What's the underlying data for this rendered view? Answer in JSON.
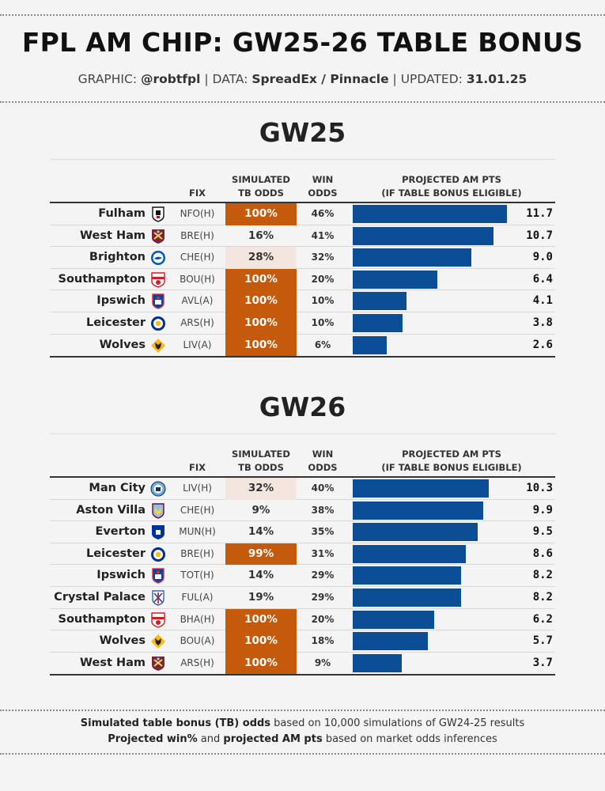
{
  "header": {
    "title": "FPL AM CHIP: GW25-26 TABLE BONUS",
    "subtitle": {
      "graphic_label": "GRAPHIC:",
      "graphic_value": "@robtfpl",
      "data_label": "DATA:",
      "data_value": "SpreadEx / Pinnacle",
      "updated_label": "UPDATED:",
      "updated_value": "31.01.25"
    }
  },
  "columns": {
    "fix": "FIX",
    "tb_line1": "SIMULATED",
    "tb_line2": "TB ODDS",
    "win_line1": "WIN",
    "win_line2": "ODDS",
    "pts_line1": "PROJECTED AM PTS",
    "pts_line2": "(IF TABLE BONUS ELIGIBLE)"
  },
  "colors": {
    "bar": "#0b4e96",
    "tb_high": "#c65a0c",
    "tb_mid": "#f2e6df"
  },
  "chart_data": [
    {
      "type": "table",
      "title": "GW25",
      "bar_max": 11.7,
      "rows": [
        {
          "team": "Fulham",
          "crest_icon": "fulham-crest-icon",
          "fix": "NFO(H)",
          "tb": "100%",
          "tb_level": "high",
          "win": "46%",
          "pts": 11.7,
          "pts_label": "11.7"
        },
        {
          "team": "West Ham",
          "crest_icon": "west-ham-crest-icon",
          "fix": "BRE(H)",
          "tb": "16%",
          "tb_level": "low",
          "win": "41%",
          "pts": 10.7,
          "pts_label": "10.7"
        },
        {
          "team": "Brighton",
          "crest_icon": "brighton-crest-icon",
          "fix": "CHE(H)",
          "tb": "28%",
          "tb_level": "mid",
          "win": "32%",
          "pts": 9.0,
          "pts_label": "9.0"
        },
        {
          "team": "Southampton",
          "crest_icon": "southampton-crest-icon",
          "fix": "BOU(H)",
          "tb": "100%",
          "tb_level": "high",
          "win": "20%",
          "pts": 6.4,
          "pts_label": "6.4"
        },
        {
          "team": "Ipswich",
          "crest_icon": "ipswich-crest-icon",
          "fix": "AVL(A)",
          "tb": "100%",
          "tb_level": "high",
          "win": "10%",
          "pts": 4.1,
          "pts_label": "4.1"
        },
        {
          "team": "Leicester",
          "crest_icon": "leicester-crest-icon",
          "fix": "ARS(H)",
          "tb": "100%",
          "tb_level": "high",
          "win": "10%",
          "pts": 3.8,
          "pts_label": "3.8"
        },
        {
          "team": "Wolves",
          "crest_icon": "wolves-crest-icon",
          "fix": "LIV(A)",
          "tb": "100%",
          "tb_level": "high",
          "win": "6%",
          "pts": 2.6,
          "pts_label": "2.6"
        }
      ]
    },
    {
      "type": "table",
      "title": "GW26",
      "bar_max": 11.7,
      "rows": [
        {
          "team": "Man City",
          "crest_icon": "man-city-crest-icon",
          "fix": "LIV(H)",
          "tb": "32%",
          "tb_level": "mid",
          "win": "40%",
          "pts": 10.3,
          "pts_label": "10.3"
        },
        {
          "team": "Aston Villa",
          "crest_icon": "aston-villa-crest-icon",
          "fix": "CHE(H)",
          "tb": "9%",
          "tb_level": "low",
          "win": "38%",
          "pts": 9.9,
          "pts_label": "9.9"
        },
        {
          "team": "Everton",
          "crest_icon": "everton-crest-icon",
          "fix": "MUN(H)",
          "tb": "14%",
          "tb_level": "low",
          "win": "35%",
          "pts": 9.5,
          "pts_label": "9.5"
        },
        {
          "team": "Leicester",
          "crest_icon": "leicester-crest-icon",
          "fix": "BRE(H)",
          "tb": "99%",
          "tb_level": "high",
          "win": "31%",
          "pts": 8.6,
          "pts_label": "8.6"
        },
        {
          "team": "Ipswich",
          "crest_icon": "ipswich-crest-icon",
          "fix": "TOT(H)",
          "tb": "14%",
          "tb_level": "low",
          "win": "29%",
          "pts": 8.2,
          "pts_label": "8.2"
        },
        {
          "team": "Crystal Palace",
          "crest_icon": "crystal-palace-crest-icon",
          "fix": "FUL(A)",
          "tb": "19%",
          "tb_level": "low",
          "win": "29%",
          "pts": 8.2,
          "pts_label": "8.2"
        },
        {
          "team": "Southampton",
          "crest_icon": "southampton-crest-icon",
          "fix": "BHA(H)",
          "tb": "100%",
          "tb_level": "high",
          "win": "20%",
          "pts": 6.2,
          "pts_label": "6.2"
        },
        {
          "team": "Wolves",
          "crest_icon": "wolves-crest-icon",
          "fix": "BOU(A)",
          "tb": "100%",
          "tb_level": "high",
          "win": "18%",
          "pts": 5.7,
          "pts_label": "5.7"
        },
        {
          "team": "West Ham",
          "crest_icon": "west-ham-crest-icon",
          "fix": "ARS(H)",
          "tb": "100%",
          "tb_level": "high",
          "win": "9%",
          "pts": 3.7,
          "pts_label": "3.7"
        }
      ]
    }
  ],
  "footer": {
    "line1_bold": "Simulated table bonus (TB) odds",
    "line1_rest": " based on 10,000 simulations of GW24-25 results",
    "line2_bold1": "Projected win%",
    "line2_mid": " and ",
    "line2_bold2": "projected AM pts",
    "line2_rest": " based on market odds inferences"
  }
}
